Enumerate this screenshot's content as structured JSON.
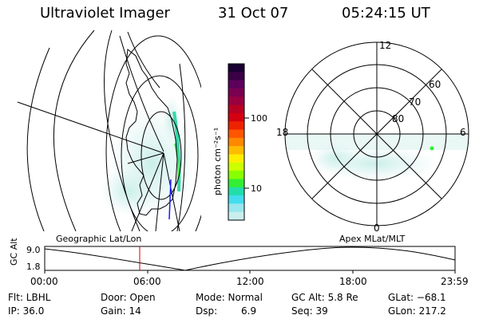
{
  "header": {
    "instrument": "Ultraviolet Imager",
    "date": "31 Oct 07",
    "time": "05:24:15 UT"
  },
  "colorbar": {
    "label": "photon cm⁻²s⁻¹",
    "ticks": [
      "100",
      "10"
    ],
    "colors": [
      "#1a0033",
      "#3a0046",
      "#5c005c",
      "#7a0050",
      "#990040",
      "#b80022",
      "#d40010",
      "#ee2200",
      "#ff5500",
      "#ff8800",
      "#ffbb00",
      "#ffee00",
      "#ccff00",
      "#88ff00",
      "#33ee33",
      "#22ddaa",
      "#44ddee",
      "#99e6ee",
      "#c9eeee"
    ]
  },
  "left_panel": {
    "label": "Geographic Lat/Lon"
  },
  "polar_plot": {
    "mlt_labels": {
      "top": "12",
      "left": "18",
      "right": "6",
      "bottom": "0"
    },
    "lat_labels": [
      "60",
      "70",
      "80"
    ],
    "label": "Apex MLat/MLT"
  },
  "altitude_plot": {
    "ylabel": "GC Alt",
    "ymax": "9.0",
    "ymin": "1.8",
    "xticks": [
      "00:00",
      "06:00",
      "12:00",
      "18:00",
      "23:59"
    ],
    "current_time_marker": "05:24"
  },
  "status": {
    "flt": "Flt: LBHL",
    "ip": "IP: 36.0",
    "door": "Door: Open",
    "gain": "Gain: 14",
    "mode": "Mode: Normal",
    "dsp_label": "Dsp:",
    "dsp_value": "6.9",
    "gc_alt": "GC Alt: 5.8 Re",
    "seq": "Seq: 39",
    "glat": "GLat: −68.1",
    "glon": "GLon: 217.2"
  }
}
